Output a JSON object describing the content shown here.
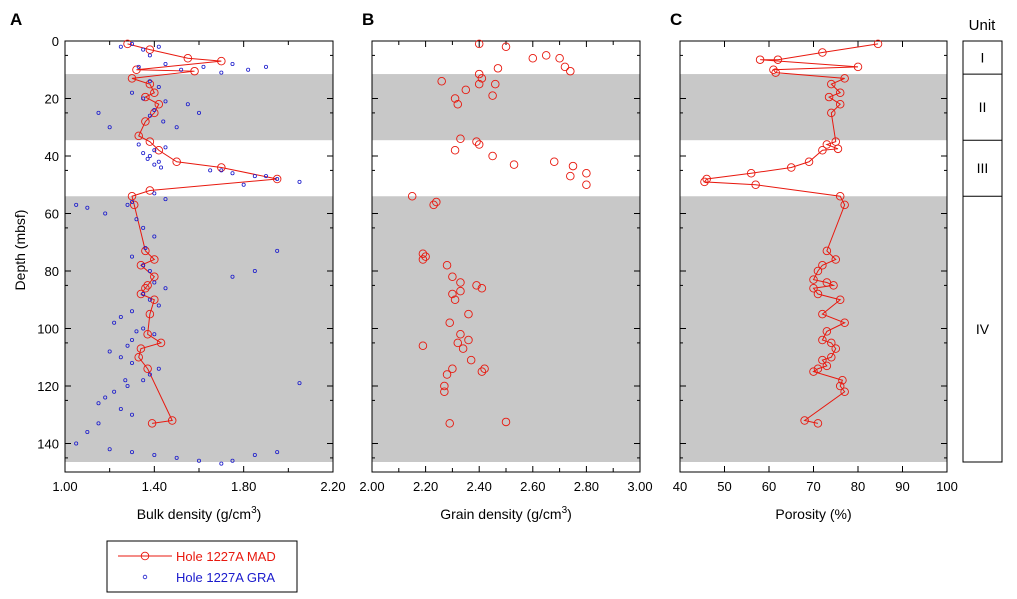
{
  "colors": {
    "mad": "#e8190f",
    "gra": "#1a1acc",
    "unit_shade": "#c8c8c8",
    "axis": "#000000"
  },
  "units": {
    "header": "Unit",
    "list": [
      {
        "label": "I",
        "top": 0,
        "bottom": 11.5,
        "shaded": false
      },
      {
        "label": "II",
        "top": 11.5,
        "bottom": 34.5,
        "shaded": true
      },
      {
        "label": "III",
        "top": 34.5,
        "bottom": 54,
        "shaded": false
      },
      {
        "label": "IV",
        "top": 54,
        "bottom": 147,
        "shaded": true
      }
    ]
  },
  "legend": [
    {
      "label": "Hole 1227A MAD",
      "series": "mad"
    },
    {
      "label": "Hole 1227A GRA",
      "series": "gra"
    }
  ],
  "chart_data": [
    {
      "panel": "A",
      "type": "scatter",
      "xlabel": "Bulk density (g/cm",
      "xlabel_sup": "3",
      "xlabel_tail": ")",
      "ylabel": "Depth (mbsf)",
      "xlim": [
        1.0,
        2.2
      ],
      "ylim": [
        0,
        150
      ],
      "y_inverted": true,
      "xticks": [
        "1.00",
        "1.40",
        "1.80",
        "2.20"
      ],
      "xminor": [
        1.2,
        1.6,
        2.0
      ],
      "yticks": [
        "0",
        "20",
        "40",
        "60",
        "80",
        "100",
        "120",
        "140"
      ],
      "series": [
        {
          "name": "Hole 1227A MAD",
          "style": "line-circle",
          "x": [
            1.28,
            1.38,
            1.55,
            1.7,
            1.32,
            1.58,
            1.3,
            1.38,
            1.4,
            1.36,
            1.42,
            1.4,
            1.36,
            1.33,
            1.38,
            1.42,
            1.5,
            1.7,
            1.95,
            1.38,
            1.3,
            1.31,
            1.36,
            1.4,
            1.34,
            1.4,
            1.37,
            1.36,
            1.34,
            1.4,
            1.38,
            1.37,
            1.43,
            1.34,
            1.33,
            1.37,
            1.48,
            1.39
          ],
          "y": [
            1,
            3,
            6,
            7,
            10,
            10.5,
            13,
            15,
            18,
            19.5,
            22,
            25,
            28,
            33,
            35,
            38,
            42,
            44,
            48,
            52,
            54,
            57,
            73,
            76,
            78,
            82,
            85,
            86,
            88,
            90,
            95,
            102,
            105,
            107,
            110,
            114,
            132,
            133
          ]
        },
        {
          "name": "Hole 1227A GRA",
          "style": "small-circle",
          "x": [
            1.25,
            1.3,
            1.35,
            1.42,
            1.38,
            1.45,
            1.33,
            1.52,
            1.62,
            1.7,
            1.75,
            1.82,
            1.9,
            1.38,
            1.42,
            1.3,
            1.35,
            1.45,
            1.4,
            1.38,
            1.44,
            1.5,
            1.55,
            1.6,
            1.33,
            1.15,
            1.2,
            1.4,
            1.45,
            1.38,
            1.35,
            1.42,
            1.4,
            1.37,
            1.43,
            1.65,
            1.75,
            1.85,
            1.95,
            2.05,
            1.8,
            1.9,
            1.7,
            1.4,
            1.45,
            1.3,
            1.28,
            1.1,
            1.05,
            1.18,
            1.32,
            1.35,
            1.4,
            1.36,
            1.3,
            1.35,
            1.38,
            1.95,
            1.85,
            1.75,
            1.4,
            1.45,
            1.35,
            1.38,
            1.42,
            1.3,
            1.25,
            1.22,
            1.35,
            1.4,
            1.3,
            1.28,
            1.2,
            1.25,
            1.3,
            1.42,
            1.38,
            2.05,
            1.35,
            1.28,
            1.22,
            1.18,
            1.15,
            1.25,
            1.3,
            1.15,
            1.1,
            1.05,
            1.2,
            1.3,
            1.4,
            1.5,
            1.6,
            1.7,
            1.75,
            1.85,
            1.95,
            1.32,
            1.27
          ],
          "y": [
            2,
            1,
            3,
            2,
            5,
            8,
            9,
            10,
            9,
            11,
            8,
            10,
            9,
            14,
            16,
            18,
            20,
            21,
            24,
            26,
            28,
            30,
            22,
            25,
            36,
            25,
            30,
            38,
            37,
            40,
            39,
            42,
            43,
            41,
            44,
            45,
            46,
            47,
            48,
            49,
            50,
            47,
            45,
            53,
            55,
            56,
            57,
            58,
            57,
            60,
            62,
            65,
            68,
            72,
            75,
            78,
            80,
            73,
            80,
            82,
            84,
            86,
            88,
            90,
            92,
            94,
            96,
            98,
            100,
            102,
            104,
            106,
            108,
            110,
            112,
            114,
            116,
            119,
            118,
            120,
            122,
            124,
            126,
            128,
            130,
            133,
            136,
            140,
            142,
            143,
            144,
            145,
            146,
            147,
            146,
            144,
            143,
            101,
            118
          ]
        }
      ]
    },
    {
      "panel": "B",
      "type": "scatter",
      "xlabel": "Grain density (g/cm",
      "xlabel_sup": "3",
      "xlabel_tail": ")",
      "xlim": [
        2.0,
        3.0
      ],
      "ylim": [
        0,
        150
      ],
      "y_inverted": true,
      "xticks": [
        "2.00",
        "2.20",
        "2.40",
        "2.60",
        "2.80",
        "3.00"
      ],
      "xminor": [
        2.1,
        2.3,
        2.5,
        2.7,
        2.9
      ],
      "series": [
        {
          "name": "Hole 1227A MAD",
          "style": "circle",
          "x": [
            2.4,
            2.5,
            2.65,
            2.6,
            2.7,
            2.72,
            2.47,
            2.74,
            2.4,
            2.41,
            2.4,
            2.26,
            2.46,
            2.35,
            2.31,
            2.45,
            2.32,
            2.39,
            2.33,
            2.31,
            2.4,
            2.45,
            2.68,
            2.53,
            2.75,
            2.8,
            2.74,
            2.8,
            2.15,
            2.24,
            2.23,
            2.19,
            2.19,
            2.2,
            2.28,
            2.3,
            2.33,
            2.39,
            2.41,
            2.3,
            2.33,
            2.31,
            2.36,
            2.29,
            2.33,
            2.32,
            2.36,
            2.34,
            2.19,
            2.37,
            2.42,
            2.41,
            2.3,
            2.28,
            2.27,
            2.27,
            2.5,
            2.29
          ],
          "y": [
            1,
            2,
            5,
            6,
            6,
            9,
            9.5,
            10.5,
            11.5,
            13,
            15,
            14,
            15,
            17,
            20,
            19,
            22,
            35,
            34,
            38,
            36,
            40,
            42,
            43,
            43.5,
            46,
            47,
            50,
            54,
            56,
            57,
            74,
            76,
            75,
            78,
            82,
            84,
            85,
            86,
            88,
            87,
            90,
            95,
            98,
            102,
            105,
            104,
            107,
            106,
            111,
            114,
            115,
            114,
            116,
            120,
            122,
            132.5,
            133
          ]
        }
      ]
    },
    {
      "panel": "C",
      "type": "line",
      "xlabel": "Porosity (%)",
      "xlim": [
        40,
        100
      ],
      "ylim": [
        0,
        150
      ],
      "y_inverted": true,
      "xticks": [
        "40",
        "50",
        "60",
        "70",
        "80",
        "90",
        "100"
      ],
      "series": [
        {
          "name": "Hole 1227A MAD",
          "style": "line-circle",
          "x": [
            84.5,
            72,
            62,
            58,
            80,
            61,
            61.5,
            77,
            74,
            76,
            73.5,
            76,
            74,
            75,
            73,
            75.5,
            72,
            69,
            65,
            56,
            46,
            45.5,
            57,
            76,
            77,
            73,
            75,
            72,
            71,
            70,
            73,
            74.5,
            70,
            71,
            76,
            72,
            77,
            73,
            72,
            74,
            75,
            74,
            72,
            73,
            71,
            70,
            76.5,
            76,
            77,
            68,
            71
          ],
          "y": [
            1,
            4,
            6.5,
            6.5,
            9,
            10,
            11,
            13,
            15,
            18,
            19.5,
            22,
            25,
            35,
            36,
            37.5,
            38,
            42,
            44,
            46,
            48,
            49,
            50,
            54,
            57,
            73,
            76,
            78,
            80,
            83,
            84,
            85,
            86,
            88,
            90,
            95,
            98,
            101,
            104,
            105,
            107,
            110,
            111,
            113,
            114,
            115,
            118,
            120,
            122,
            132,
            133
          ]
        }
      ]
    }
  ]
}
